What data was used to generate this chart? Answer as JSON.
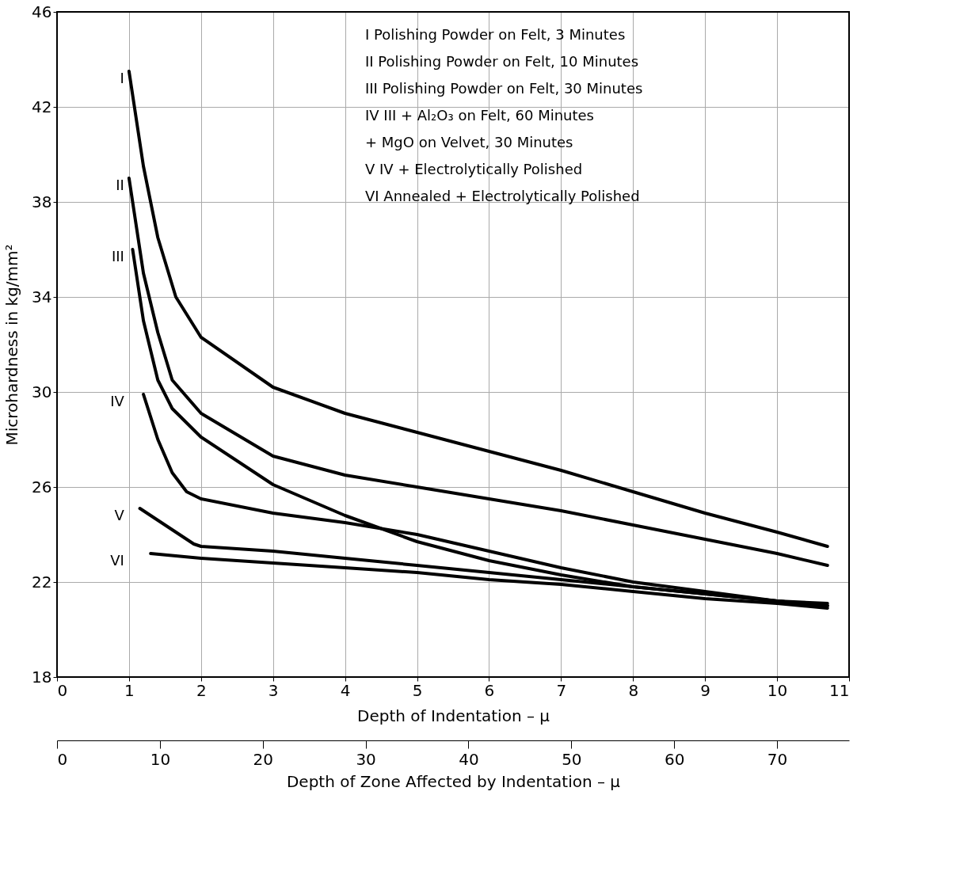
{
  "chart_data": {
    "type": "line",
    "xlabel": "Depth of Indentation – μ",
    "x2label": "Depth of Zone Affected by Indentation – μ",
    "ylabel": "Microhardness   in   kg/mm²",
    "xlim": [
      0,
      11
    ],
    "xticks": [
      0,
      1,
      2,
      3,
      4,
      5,
      6,
      7,
      8,
      9,
      10,
      11
    ],
    "x2lim": [
      0,
      77
    ],
    "x2ticks": [
      0,
      10,
      20,
      30,
      40,
      50,
      60,
      70
    ],
    "ylim": [
      18,
      46
    ],
    "yticks": [
      18,
      22,
      26,
      30,
      34,
      38,
      42,
      46
    ],
    "grid": true,
    "legend": false,
    "marker": "none",
    "line_style": "solid",
    "annotations": [
      "I     Polishing Powder on Felt,  3 Minutes",
      "II    Polishing Powder on Felt, 10 Minutes",
      "III   Polishing Powder on Felt, 30 Minutes",
      "IV  III + Al₂O₃ on Felt, 60 Minutes",
      "        + MgO on Velvet, 30 Minutes",
      "V   IV + Electrolytically Polished",
      "VI    Annealed + Electrolytically Polished"
    ],
    "series": [
      {
        "name": "I",
        "color": "#000000",
        "x": [
          1.0,
          1.2,
          1.4,
          1.65,
          2,
          3,
          4,
          5,
          6,
          7,
          8,
          9,
          10,
          10.7
        ],
        "values": [
          43.5,
          39.5,
          36.5,
          34.0,
          32.3,
          30.2,
          29.1,
          28.3,
          27.5,
          26.7,
          25.8,
          24.9,
          24.1,
          23.5
        ]
      },
      {
        "name": "II",
        "color": "#000000",
        "x": [
          1.0,
          1.2,
          1.4,
          1.6,
          2,
          3,
          4,
          5,
          6,
          7,
          8,
          9,
          10,
          10.7
        ],
        "values": [
          39.0,
          35.0,
          32.5,
          30.5,
          29.1,
          27.3,
          26.5,
          26.0,
          25.5,
          25.0,
          24.4,
          23.8,
          23.2,
          22.7
        ]
      },
      {
        "name": "III",
        "color": "#000000",
        "x": [
          1.05,
          1.2,
          1.4,
          1.6,
          2,
          3,
          4,
          5,
          6,
          7,
          8,
          9,
          10,
          10.7
        ],
        "values": [
          36.0,
          33.0,
          30.5,
          29.3,
          28.1,
          26.1,
          24.8,
          23.7,
          22.9,
          22.3,
          21.8,
          21.5,
          21.2,
          21.1
        ]
      },
      {
        "name": "IV",
        "color": "#000000",
        "x": [
          1.2,
          1.4,
          1.6,
          1.8,
          2,
          3,
          4,
          5,
          6,
          7,
          8,
          9,
          10,
          10.7
        ],
        "values": [
          29.9,
          28.0,
          26.6,
          25.8,
          25.5,
          24.9,
          24.5,
          24.0,
          23.3,
          22.6,
          22.0,
          21.6,
          21.2,
          21.0
        ]
      },
      {
        "name": "V",
        "color": "#000000",
        "x": [
          1.15,
          1.9,
          2,
          3,
          4,
          5,
          6,
          7,
          8,
          9,
          10,
          10.7
        ],
        "values": [
          25.1,
          23.6,
          23.5,
          23.3,
          23.0,
          22.7,
          22.4,
          22.1,
          21.8,
          21.5,
          21.2,
          21.0
        ]
      },
      {
        "name": "VI",
        "color": "#000000",
        "x": [
          1.3,
          2,
          3,
          4,
          5,
          6,
          7,
          8,
          9,
          10,
          10.7
        ],
        "values": [
          23.2,
          23.0,
          22.8,
          22.6,
          22.4,
          22.1,
          21.9,
          21.6,
          21.3,
          21.1,
          20.9
        ]
      }
    ]
  }
}
